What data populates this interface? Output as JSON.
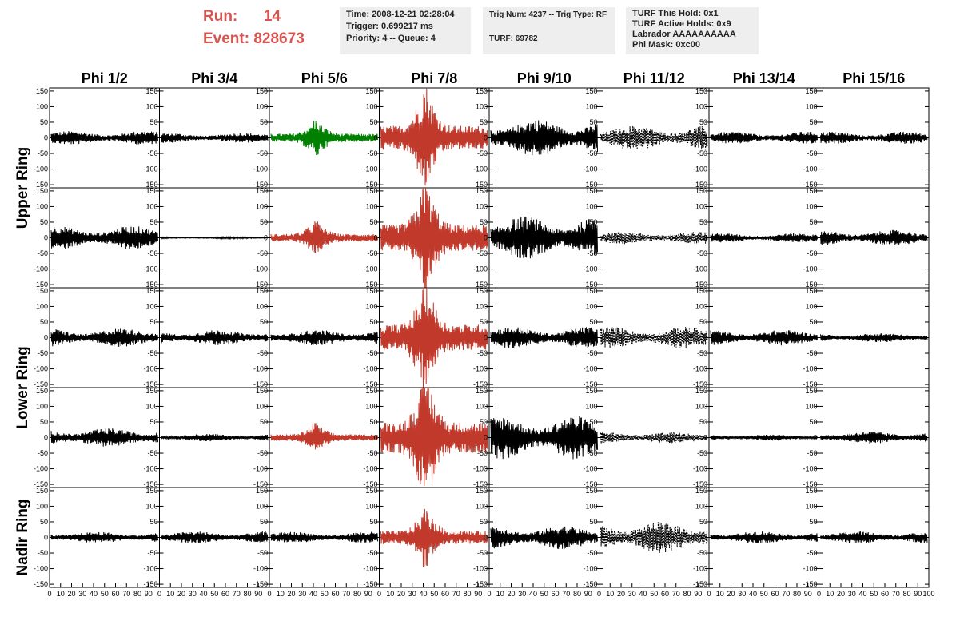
{
  "header": {
    "run_label": "Run:",
    "run_value": "14",
    "event_label": "Event:",
    "event_value": "828673"
  },
  "info_boxes": [
    {
      "lines": [
        "Time: 2008-12-21 02:28:04",
        "Trigger: 0.699217 ms",
        "Priority: 4 -- Queue: 4"
      ]
    },
    {
      "lines": [
        "Trig Num: 4237 -- Trig Type: RF",
        "",
        "TURF: 69782"
      ]
    },
    {
      "lines": [
        "TURF This Hold: 0x1",
        "TURF Active Holds: 0x9",
        "Labrador AAAAAAAAAA",
        "Phi Mask: 0xc00"
      ]
    }
  ],
  "chart_data": {
    "type": "line",
    "columns": [
      "Phi 1/2",
      "Phi 3/4",
      "Phi 5/6",
      "Phi 7/8",
      "Phi 9/10",
      "Phi 11/12",
      "Phi 13/14",
      "Phi 15/16"
    ],
    "rows": [
      "Upper Ring",
      "Upper Ring",
      "Lower Ring",
      "Lower Ring",
      "Nadir Ring"
    ],
    "row_labels": [
      "Upper Ring",
      "Lower Ring",
      "Nadir Ring"
    ],
    "ylim": [
      -160,
      160
    ],
    "xlim": [
      0,
      100
    ],
    "y_ticks": [
      150,
      100,
      50,
      0,
      -50,
      -100,
      -150
    ],
    "x_ticks": [
      0,
      10,
      20,
      30,
      40,
      50,
      60,
      70,
      80,
      90,
      100
    ],
    "x_tick_labels": [
      "0",
      "10",
      "20",
      "30",
      "40",
      "50",
      "60",
      "70",
      "80",
      "90",
      "100"
    ],
    "colors": {
      "normal": "#000000",
      "green": "#008000",
      "red": "#c0392b",
      "frame": "#000000"
    },
    "panels": [
      [
        {
          "color": "normal",
          "amp": 22,
          "dashed": false,
          "burst": false
        },
        {
          "color": "normal",
          "amp": 16,
          "dashed": false,
          "burst": false
        },
        {
          "color": "green",
          "amp": 38,
          "dashed": false,
          "burst": true
        },
        {
          "color": "red",
          "amp": 110,
          "dashed": false,
          "burst": true
        },
        {
          "color": "normal",
          "amp": 60,
          "dashed": false,
          "burst": false
        },
        {
          "color": "normal",
          "amp": 40,
          "dashed": true,
          "burst": false
        },
        {
          "color": "normal",
          "amp": 20,
          "dashed": false,
          "burst": false
        },
        {
          "color": "normal",
          "amp": 20,
          "dashed": false,
          "burst": false
        }
      ],
      [
        {
          "color": "normal",
          "amp": 38,
          "dashed": false,
          "burst": false
        },
        {
          "color": "normal",
          "amp": 3,
          "dashed": false,
          "burst": false
        },
        {
          "color": "red",
          "amp": 35,
          "dashed": false,
          "burst": true
        },
        {
          "color": "red",
          "amp": 120,
          "dashed": false,
          "burst": true
        },
        {
          "color": "normal",
          "amp": 70,
          "dashed": false,
          "burst": false
        },
        {
          "color": "normal",
          "amp": 20,
          "dashed": true,
          "burst": false
        },
        {
          "color": "normal",
          "amp": 15,
          "dashed": false,
          "burst": false
        },
        {
          "color": "normal",
          "amp": 25,
          "dashed": false,
          "burst": false
        }
      ],
      [
        {
          "color": "normal",
          "amp": 30,
          "dashed": false,
          "burst": false
        },
        {
          "color": "normal",
          "amp": 25,
          "dashed": false,
          "burst": false
        },
        {
          "color": "normal",
          "amp": 25,
          "dashed": false,
          "burst": false
        },
        {
          "color": "red",
          "amp": 120,
          "dashed": false,
          "burst": true
        },
        {
          "color": "normal",
          "amp": 35,
          "dashed": false,
          "burst": false
        },
        {
          "color": "normal",
          "amp": 35,
          "dashed": true,
          "burst": false
        },
        {
          "color": "normal",
          "amp": 25,
          "dashed": false,
          "burst": false
        },
        {
          "color": "normal",
          "amp": 15,
          "dashed": false,
          "burst": false
        }
      ],
      [
        {
          "color": "normal",
          "amp": 30,
          "dashed": false,
          "burst": false
        },
        {
          "color": "normal",
          "amp": 12,
          "dashed": false,
          "burst": false
        },
        {
          "color": "red",
          "amp": 30,
          "dashed": false,
          "burst": true
        },
        {
          "color": "red",
          "amp": 140,
          "dashed": false,
          "burst": true
        },
        {
          "color": "normal",
          "amp": 70,
          "dashed": false,
          "burst": false
        },
        {
          "color": "normal",
          "amp": 20,
          "dashed": true,
          "burst": false
        },
        {
          "color": "normal",
          "amp": 10,
          "dashed": false,
          "burst": false
        },
        {
          "color": "normal",
          "amp": 20,
          "dashed": false,
          "burst": false
        }
      ],
      [
        {
          "color": "normal",
          "amp": 18,
          "dashed": false,
          "burst": false
        },
        {
          "color": "normal",
          "amp": 20,
          "dashed": false,
          "burst": false
        },
        {
          "color": "normal",
          "amp": 18,
          "dashed": false,
          "burst": false
        },
        {
          "color": "red",
          "amp": 60,
          "dashed": false,
          "burst": true
        },
        {
          "color": "normal",
          "amp": 38,
          "dashed": false,
          "burst": false
        },
        {
          "color": "normal",
          "amp": 50,
          "dashed": true,
          "burst": false
        },
        {
          "color": "normal",
          "amp": 20,
          "dashed": false,
          "burst": false
        },
        {
          "color": "normal",
          "amp": 20,
          "dashed": false,
          "burst": false
        }
      ]
    ]
  }
}
